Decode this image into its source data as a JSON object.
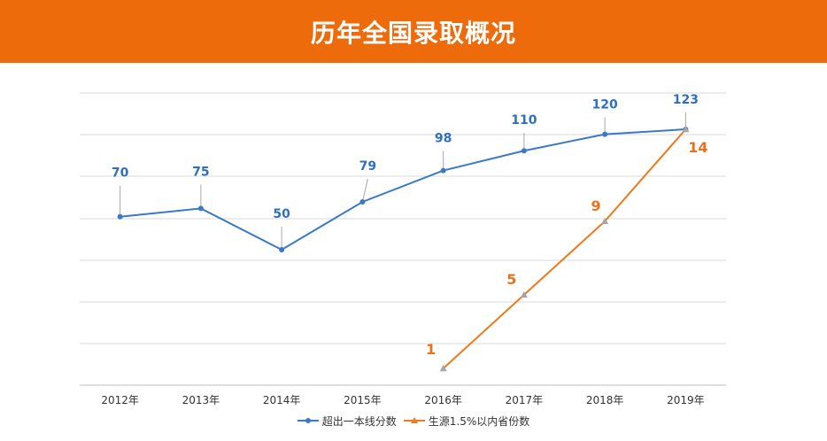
{
  "title": "历年全国录取概况",
  "colors": {
    "banner": "#ee6b0b",
    "series1": "#3a78c8",
    "series2": "#ee7a1c",
    "series1_label": "#2f6fbf",
    "series2_label": "#e8731a",
    "grid": "#d9d9d9"
  },
  "chart_data": {
    "type": "line",
    "categories": [
      "2012年",
      "2013年",
      "2014年",
      "2015年",
      "2016年",
      "2017年",
      "2018年",
      "2019年"
    ],
    "series": [
      {
        "name": "超出一本线分数",
        "values": [
          70,
          75,
          50,
          79,
          98,
          110,
          120,
          123
        ],
        "marker": "circle",
        "labels": [
          "70",
          "75",
          "50",
          "79",
          "98",
          "110",
          "120",
          "123"
        ]
      },
      {
        "name": "生源1.5%以内省份数",
        "x": [
          "2016年",
          "2017年",
          "2018年",
          "2019年"
        ],
        "values": [
          1,
          5,
          9,
          14
        ],
        "marker": "triangle",
        "labels": [
          "1",
          "5",
          "9",
          "14"
        ]
      }
    ],
    "grid": true,
    "legend": "bottom"
  }
}
